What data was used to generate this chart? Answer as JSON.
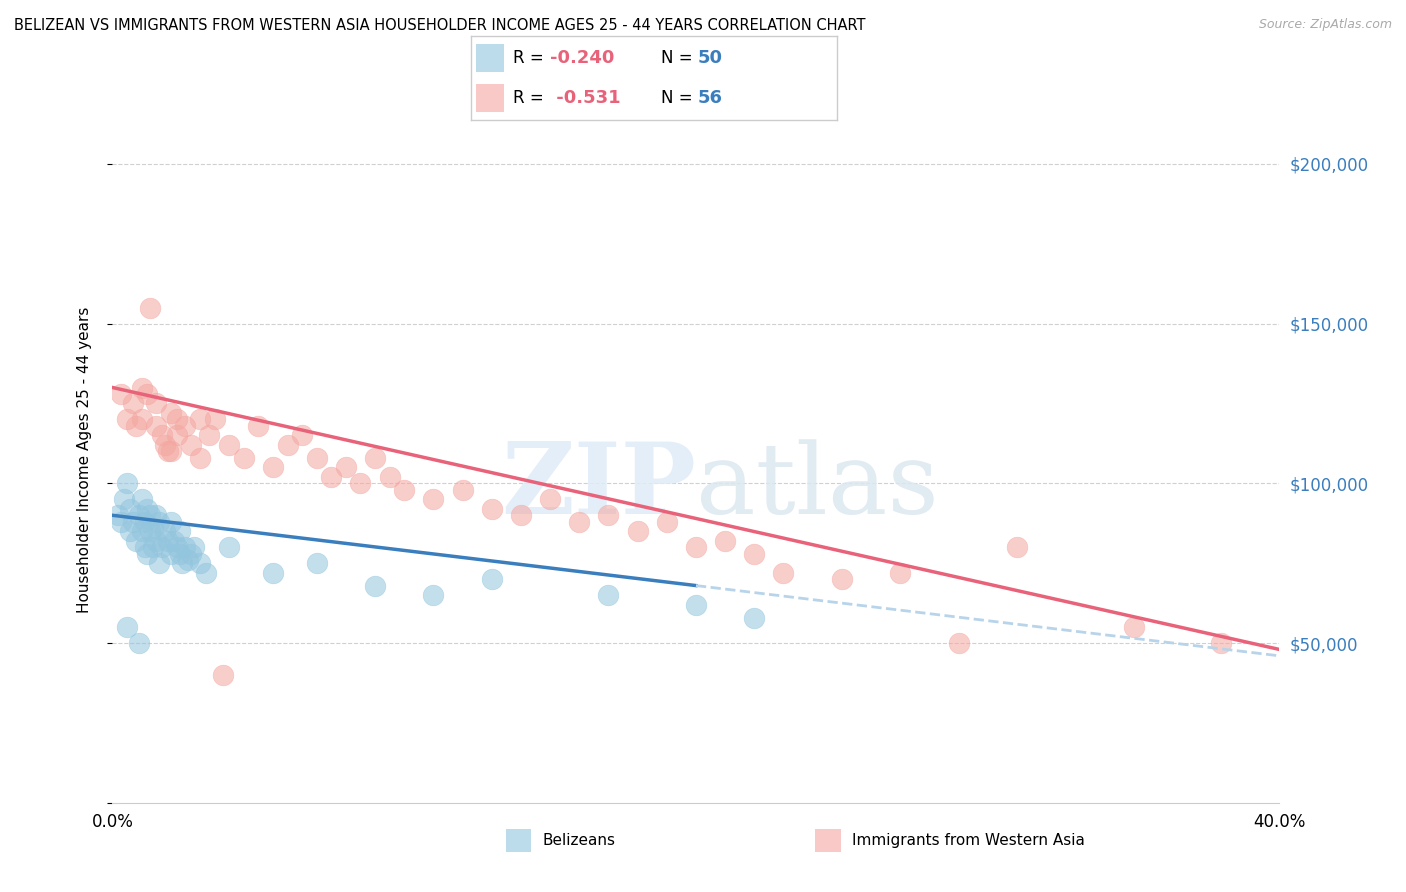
{
  "title": "BELIZEAN VS IMMIGRANTS FROM WESTERN ASIA HOUSEHOLDER INCOME AGES 25 - 44 YEARS CORRELATION CHART",
  "source": "Source: ZipAtlas.com",
  "ylabel": "Householder Income Ages 25 - 44 years",
  "right_ytick_labels": [
    "$50,000",
    "$100,000",
    "$150,000",
    "$200,000"
  ],
  "right_ytick_vals": [
    50000,
    100000,
    150000,
    200000
  ],
  "xmin": 0.0,
  "xmax": 40.0,
  "ymin": 0,
  "ymax": 215000,
  "blue_color": "#92c5de",
  "pink_color": "#f4a6a0",
  "blue_line_color": "#3a7ebe",
  "pink_line_color": "#e8637a",
  "dashed_line_color": "#b8d4ea",
  "blue_x": [
    0.2,
    0.3,
    0.4,
    0.5,
    0.6,
    0.6,
    0.7,
    0.8,
    0.9,
    1.0,
    1.0,
    1.1,
    1.1,
    1.2,
    1.2,
    1.3,
    1.3,
    1.4,
    1.4,
    1.5,
    1.5,
    1.6,
    1.6,
    1.7,
    1.8,
    1.9,
    2.0,
    2.0,
    2.1,
    2.2,
    2.3,
    2.3,
    2.4,
    2.5,
    2.6,
    2.7,
    2.8,
    3.0,
    3.2,
    4.0,
    5.5,
    7.0,
    9.0,
    11.0,
    13.0,
    17.0,
    20.0,
    22.0,
    0.5,
    0.9
  ],
  "blue_y": [
    90000,
    88000,
    95000,
    100000,
    85000,
    92000,
    88000,
    82000,
    90000,
    95000,
    85000,
    80000,
    88000,
    92000,
    78000,
    85000,
    90000,
    80000,
    86000,
    82000,
    90000,
    88000,
    75000,
    80000,
    85000,
    82000,
    88000,
    78000,
    82000,
    80000,
    78000,
    85000,
    75000,
    80000,
    76000,
    78000,
    80000,
    75000,
    72000,
    80000,
    72000,
    75000,
    68000,
    65000,
    70000,
    65000,
    62000,
    58000,
    55000,
    50000
  ],
  "pink_x": [
    0.3,
    0.5,
    0.7,
    0.8,
    1.0,
    1.0,
    1.2,
    1.3,
    1.5,
    1.5,
    1.7,
    1.8,
    2.0,
    2.0,
    2.2,
    2.2,
    2.5,
    2.7,
    3.0,
    3.0,
    3.3,
    3.5,
    4.0,
    4.5,
    5.0,
    5.5,
    6.0,
    6.5,
    7.0,
    7.5,
    8.0,
    8.5,
    9.0,
    9.5,
    10.0,
    11.0,
    12.0,
    13.0,
    14.0,
    15.0,
    16.0,
    17.0,
    18.0,
    19.0,
    20.0,
    21.0,
    22.0,
    23.0,
    25.0,
    27.0,
    29.0,
    31.0,
    35.0,
    38.0,
    1.9,
    3.8
  ],
  "pink_y": [
    128000,
    120000,
    125000,
    118000,
    130000,
    120000,
    128000,
    155000,
    125000,
    118000,
    115000,
    112000,
    122000,
    110000,
    120000,
    115000,
    118000,
    112000,
    120000,
    108000,
    115000,
    120000,
    112000,
    108000,
    118000,
    105000,
    112000,
    115000,
    108000,
    102000,
    105000,
    100000,
    108000,
    102000,
    98000,
    95000,
    98000,
    92000,
    90000,
    95000,
    88000,
    90000,
    85000,
    88000,
    80000,
    82000,
    78000,
    72000,
    70000,
    72000,
    50000,
    80000,
    55000,
    50000,
    110000,
    40000
  ]
}
